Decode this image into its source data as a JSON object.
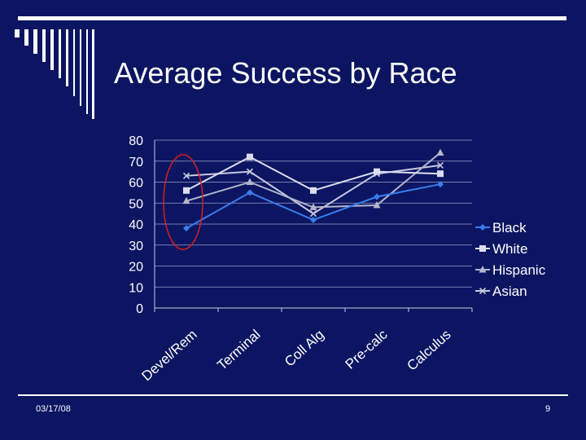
{
  "slide": {
    "title": "Average Success by Race",
    "date": "03/17/08",
    "page_number": "9"
  },
  "colors": {
    "background": "#0b1561",
    "text": "#ffffff",
    "gridline": "#9aa0c8",
    "highlight_ellipse": "#d42020"
  },
  "chart_data": {
    "type": "line",
    "title": "Average Success by Race",
    "xlabel": "",
    "ylabel": "",
    "ylim": [
      0,
      80
    ],
    "yticks": [
      0,
      10,
      20,
      30,
      40,
      50,
      60,
      70,
      80
    ],
    "categories": [
      "Devel/Rem",
      "Terminal",
      "Coll Alg",
      "Pre-calc",
      "Calculus"
    ],
    "grid": true,
    "legend_position": "right",
    "annotation": "red ellipse highlighting Devel/Rem values",
    "series": [
      {
        "name": "Black",
        "values": [
          38,
          55,
          42,
          53,
          59
        ],
        "color": "#3a7df0",
        "marker": "diamond"
      },
      {
        "name": "White",
        "values": [
          56,
          72,
          56,
          65,
          64
        ],
        "color": "#dcdcf0",
        "marker": "square"
      },
      {
        "name": "Hispanic",
        "values": [
          51,
          60,
          48,
          49,
          74
        ],
        "color": "#b4b6cc",
        "marker": "triangle"
      },
      {
        "name": "Asian",
        "values": [
          63,
          65,
          45,
          64,
          68
        ],
        "color": "#c8c8e0",
        "marker": "x"
      }
    ]
  }
}
